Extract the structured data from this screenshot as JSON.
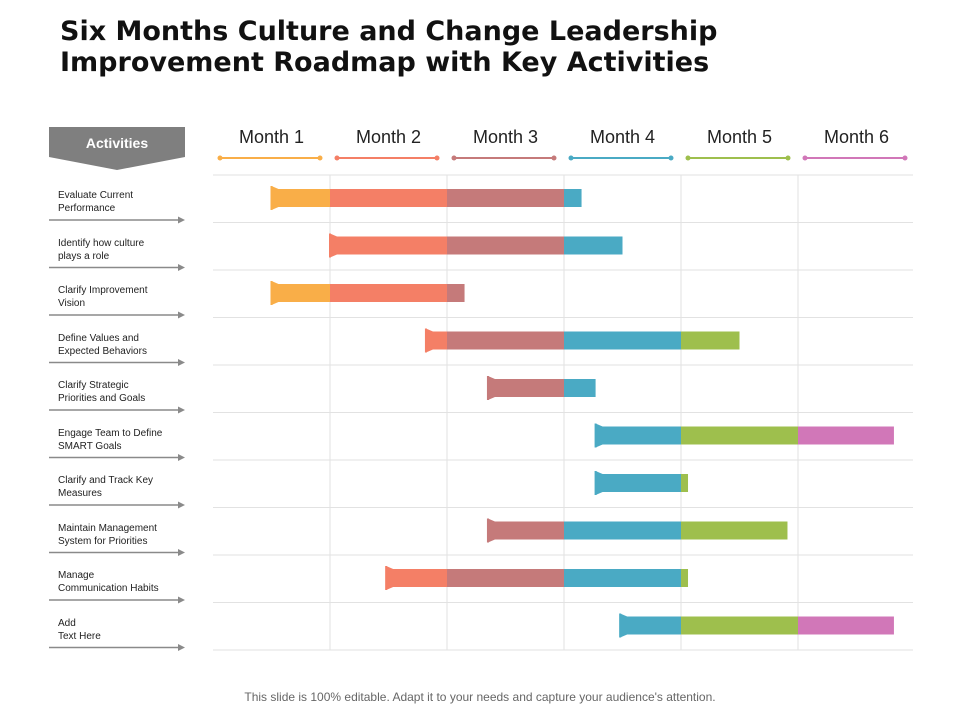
{
  "title": "Six Months Culture and Change Leadership Improvement Roadmap with Key Activities",
  "footer": "This slide is 100% editable. Adapt it to your needs and capture your audience's attention.",
  "activities_header": "Activities",
  "colors": {
    "header_bg": "#7f7f7f",
    "month_colors": [
      "#f9ae48",
      "#f47f66",
      "#c57a7a",
      "#4aaac4",
      "#9ebf4d",
      "#d177b8"
    ],
    "grid": "#e2e2e2",
    "arrow": "#8a8a8a"
  },
  "chart_data": {
    "type": "gantt",
    "months": [
      "Month 1",
      "Month 2",
      "Month 3",
      "Month 4",
      "Month 5",
      "Month 6"
    ],
    "tasks": [
      {
        "label": "Evaluate Current\nPerformance",
        "start": 0.5,
        "end": 3.15
      },
      {
        "label": "Identify how culture\nplays a role",
        "start": 1.0,
        "end": 3.5
      },
      {
        "label": "Clarify Improvement\nVision",
        "start": 0.5,
        "end": 2.15
      },
      {
        "label": "Define Values and\nExpected Behaviors",
        "start": 1.82,
        "end": 4.5
      },
      {
        "label": "Clarify Strategic\nPriorities and Goals",
        "start": 2.35,
        "end": 3.27
      },
      {
        "label": "Engage Team to Define\nSMART Goals",
        "start": 3.27,
        "end": 5.82
      },
      {
        "label": "Clarify and Track Key\nMeasures",
        "start": 3.27,
        "end": 4.06
      },
      {
        "label": "Maintain Management\nSystem for Priorities",
        "start": 2.35,
        "end": 4.91
      },
      {
        "label": "Manage\nCommunication Habits",
        "start": 1.48,
        "end": 4.06
      },
      {
        "label": "Add\nText Here",
        "start": 3.48,
        "end": 5.82
      }
    ]
  }
}
